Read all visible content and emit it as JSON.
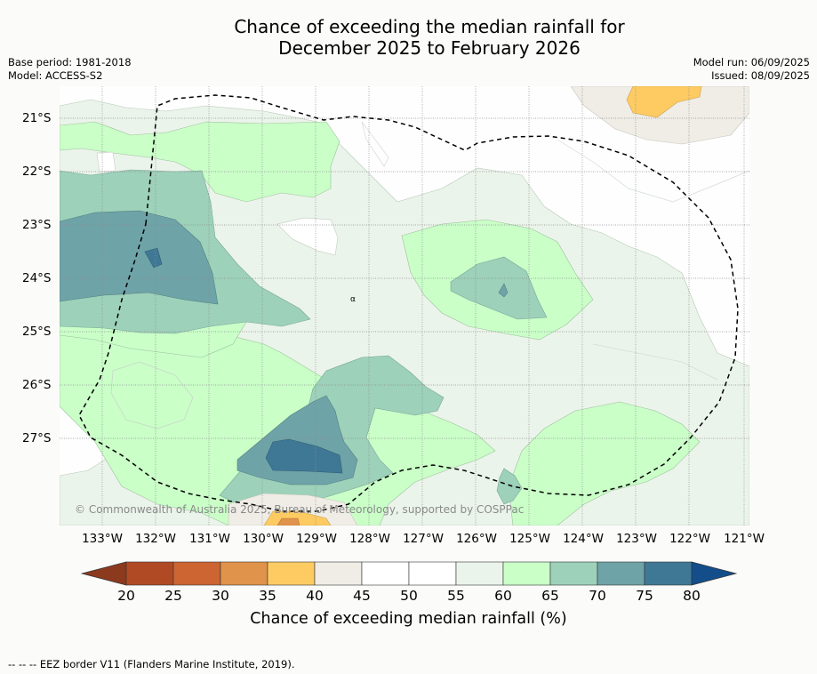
{
  "title_line1": "Chance of exceeding the median rainfall for",
  "title_line2": "December 2025 to February 2026",
  "base_period": "Base period: 1981-2018",
  "model": "Model: ACCESS-S2",
  "model_run": "Model run: 06/09/2025",
  "issued": "Issued: 08/09/2025",
  "lat_labels": [
    "21°S",
    "22°S",
    "23°S",
    "24°S",
    "25°S",
    "26°S",
    "27°S"
  ],
  "lon_labels": [
    "133°W",
    "132°W",
    "131°W",
    "130°W",
    "129°W",
    "128°W",
    "127°W",
    "126°W",
    "125°W",
    "124°W",
    "123°W",
    "122°W",
    "121°W"
  ],
  "copyright": "© Commonwealth of Australia 2025, Bureau of Meteorology, supported by COSPPac",
  "colorbar": {
    "ticks": [
      "20",
      "25",
      "30",
      "35",
      "40",
      "45",
      "50",
      "55",
      "60",
      "65",
      "70",
      "75",
      "80"
    ],
    "colors": [
      "#8c3a1e",
      "#b04a24",
      "#cc6532",
      "#e0934a",
      "#fecb63",
      "#efede6",
      "#ffffff",
      "#ffffff",
      "#ebf4ea",
      "#caffc8",
      "#9dd1ba",
      "#6ea3a8",
      "#3f7895",
      "#134e8b"
    ],
    "label": "Chance of exceeding median rainfall (%)"
  },
  "map_marker": "α",
  "footer": "-- -- -- EEZ border V11 (Flanders Marine Institute, 2019)."
}
